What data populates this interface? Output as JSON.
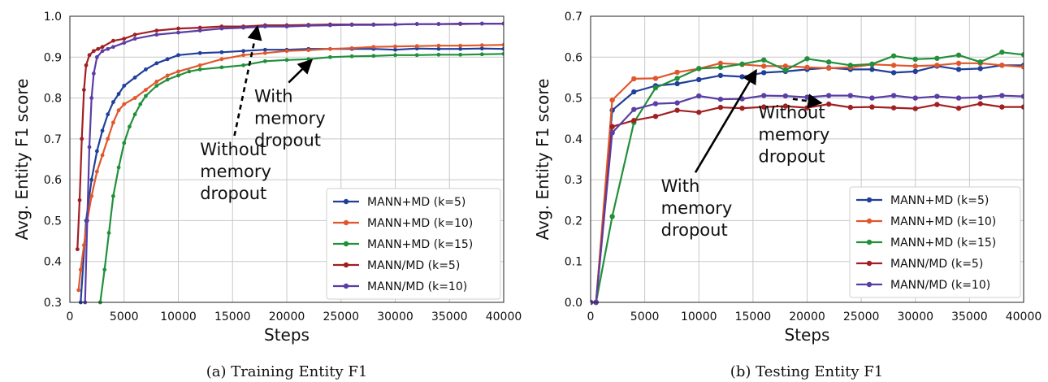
{
  "colors": {
    "MANN+MD (k=5)": "#1f3f9a",
    "MANN+MD (k=10)": "#e0572b",
    "MANN+MD (k=15)": "#21903a",
    "MANN/MD (k=5)": "#a11f22",
    "MANN/MD (k=10)": "#5b3ea5"
  },
  "chart_data": [
    {
      "type": "line",
      "caption": "(a) Training Entity F1",
      "xlabel": "Steps",
      "ylabel": "Avg. Entity F1 score",
      "xlim": [
        0,
        40000
      ],
      "ylim": [
        0.3,
        1.0
      ],
      "xticks": [
        0,
        5000,
        10000,
        15000,
        20000,
        25000,
        30000,
        35000,
        40000
      ],
      "yticks": [
        0.3,
        0.4,
        0.5,
        0.6,
        0.7,
        0.8,
        0.9,
        1.0
      ],
      "grid": true,
      "legend_position": "lower-right",
      "annotations": [
        {
          "text": "Without\nmemory\ndropout",
          "style": "dashed-arrow",
          "x": 12000,
          "y": 0.66,
          "arrow_to": [
            17300,
            0.975
          ]
        },
        {
          "text": "With\nmemory\ndropout",
          "style": "solid-arrow",
          "x": 17000,
          "y": 0.79,
          "arrow_to": [
            22300,
            0.893
          ]
        }
      ],
      "series": [
        {
          "name": "MANN+MD (k=5)",
          "x": [
            1000,
            1500,
            2000,
            2500,
            3000,
            3500,
            4000,
            4500,
            5000,
            6000,
            7000,
            8000,
            9000,
            10000,
            12000,
            14000,
            16000,
            18000,
            20000,
            22000,
            24000,
            26000,
            28000,
            30000,
            32000,
            34000,
            36000,
            38000,
            40000
          ],
          "values": [
            0.3,
            0.5,
            0.6,
            0.67,
            0.72,
            0.76,
            0.79,
            0.81,
            0.83,
            0.85,
            0.87,
            0.885,
            0.895,
            0.905,
            0.91,
            0.912,
            0.915,
            0.918,
            0.918,
            0.92,
            0.92,
            0.92,
            0.92,
            0.918,
            0.921,
            0.92,
            0.92,
            0.921,
            0.92
          ]
        },
        {
          "name": "MANN+MD (k=10)",
          "x": [
            800,
            1000,
            1300,
            1600,
            2000,
            2500,
            3000,
            3500,
            4000,
            4500,
            5000,
            6000,
            7000,
            8000,
            9000,
            10000,
            12000,
            14000,
            16000,
            18000,
            20000,
            22000,
            24000,
            26000,
            28000,
            30000,
            32000,
            34000,
            36000,
            38000,
            40000
          ],
          "values": [
            0.33,
            0.38,
            0.44,
            0.5,
            0.56,
            0.62,
            0.66,
            0.7,
            0.74,
            0.77,
            0.785,
            0.8,
            0.82,
            0.84,
            0.855,
            0.865,
            0.88,
            0.895,
            0.905,
            0.91,
            0.915,
            0.917,
            0.92,
            0.922,
            0.925,
            0.926,
            0.927,
            0.928,
            0.928,
            0.929,
            0.93
          ]
        },
        {
          "name": "MANN+MD (k=15)",
          "x": [
            2800,
            3200,
            3600,
            4000,
            4500,
            5000,
            5500,
            6000,
            6500,
            7000,
            8000,
            9000,
            10000,
            11000,
            12000,
            14000,
            16000,
            18000,
            20000,
            22000,
            24000,
            26000,
            28000,
            30000,
            32000,
            34000,
            36000,
            38000,
            40000
          ],
          "values": [
            0.3,
            0.38,
            0.47,
            0.56,
            0.63,
            0.69,
            0.73,
            0.76,
            0.785,
            0.805,
            0.83,
            0.845,
            0.855,
            0.865,
            0.87,
            0.875,
            0.88,
            0.89,
            0.893,
            0.895,
            0.9,
            0.902,
            0.903,
            0.905,
            0.905,
            0.906,
            0.906,
            0.907,
            0.908
          ]
        },
        {
          "name": "MANN/MD (k=5)",
          "x": [
            700,
            900,
            1100,
            1300,
            1500,
            1800,
            2200,
            2600,
            3000,
            4000,
            5000,
            6000,
            8000,
            10000,
            12000,
            14000,
            16000,
            18000,
            20000,
            22000,
            24000,
            26000,
            28000,
            30000,
            32000,
            34000,
            36000,
            38000,
            40000
          ],
          "values": [
            0.43,
            0.55,
            0.7,
            0.82,
            0.88,
            0.905,
            0.915,
            0.92,
            0.925,
            0.94,
            0.945,
            0.955,
            0.965,
            0.97,
            0.972,
            0.975,
            0.975,
            0.978,
            0.978,
            0.979,
            0.98,
            0.98,
            0.98,
            0.98,
            0.981,
            0.981,
            0.981,
            0.982,
            0.982
          ]
        },
        {
          "name": "MANN/MD (k=10)",
          "x": [
            1400,
            1600,
            1800,
            2000,
            2200,
            2500,
            3000,
            3500,
            4000,
            5000,
            6000,
            8000,
            10000,
            12000,
            14000,
            16000,
            18000,
            20000,
            22000,
            24000,
            26000,
            28000,
            30000,
            32000,
            34000,
            36000,
            38000,
            40000
          ],
          "values": [
            0.3,
            0.5,
            0.68,
            0.8,
            0.86,
            0.9,
            0.915,
            0.92,
            0.925,
            0.935,
            0.945,
            0.955,
            0.96,
            0.965,
            0.97,
            0.972,
            0.975,
            0.975,
            0.977,
            0.978,
            0.979,
            0.979,
            0.98,
            0.981,
            0.981,
            0.982,
            0.982,
            0.982
          ]
        }
      ]
    },
    {
      "type": "line",
      "caption": "(b) Testing Entity F1",
      "xlabel": "Steps",
      "ylabel": "Avg. Entity F1 score",
      "xlim": [
        0,
        40000
      ],
      "ylim": [
        0.0,
        0.7
      ],
      "xticks": [
        0,
        5000,
        10000,
        15000,
        20000,
        25000,
        30000,
        35000,
        40000
      ],
      "yticks": [
        0.0,
        0.1,
        0.2,
        0.3,
        0.4,
        0.5,
        0.6,
        0.7
      ],
      "grid": true,
      "legend_position": "lower-right",
      "annotations": [
        {
          "text": "With\nmemory\ndropout",
          "style": "solid-arrow",
          "x": 6500,
          "y": 0.27,
          "arrow_to": [
            15300,
            0.568
          ]
        },
        {
          "text": "Without\nmemory\ndropout",
          "style": "dashed-arrow",
          "x": 15500,
          "y": 0.45,
          "arrow_to": [
            21300,
            0.488
          ]
        }
      ],
      "series": [
        {
          "name": "MANN+MD (k=5)",
          "x": [
            0,
            500,
            2000,
            4000,
            6000,
            8000,
            10000,
            12000,
            14000,
            16000,
            18000,
            20000,
            22000,
            24000,
            26000,
            28000,
            30000,
            32000,
            34000,
            36000,
            38000,
            40000
          ],
          "values": [
            0.0,
            0.0,
            0.47,
            0.515,
            0.53,
            0.535,
            0.545,
            0.555,
            0.552,
            0.562,
            0.565,
            0.57,
            0.574,
            0.57,
            0.57,
            0.562,
            0.565,
            0.578,
            0.57,
            0.572,
            0.58,
            0.58
          ]
        },
        {
          "name": "MANN+MD (k=10)",
          "x": [
            0,
            500,
            2000,
            4000,
            6000,
            8000,
            10000,
            12000,
            14000,
            16000,
            18000,
            20000,
            22000,
            24000,
            26000,
            28000,
            30000,
            32000,
            34000,
            36000,
            38000,
            40000
          ],
          "values": [
            0.0,
            0.0,
            0.495,
            0.547,
            0.548,
            0.563,
            0.572,
            0.585,
            0.582,
            0.578,
            0.578,
            0.575,
            0.573,
            0.575,
            0.582,
            0.58,
            0.578,
            0.58,
            0.585,
            0.585,
            0.58,
            0.576
          ]
        },
        {
          "name": "MANN+MD (k=15)",
          "x": [
            0,
            500,
            2000,
            4000,
            6000,
            8000,
            10000,
            12000,
            14000,
            16000,
            18000,
            20000,
            22000,
            24000,
            26000,
            28000,
            30000,
            32000,
            34000,
            36000,
            38000,
            40000
          ],
          "values": [
            0.0,
            0.0,
            0.21,
            0.44,
            0.525,
            0.548,
            0.572,
            0.575,
            0.583,
            0.593,
            0.568,
            0.596,
            0.588,
            0.58,
            0.583,
            0.603,
            0.595,
            0.597,
            0.605,
            0.588,
            0.612,
            0.606
          ]
        },
        {
          "name": "MANN/MD (k=5)",
          "x": [
            0,
            500,
            2000,
            4000,
            6000,
            8000,
            10000,
            12000,
            14000,
            16000,
            18000,
            20000,
            22000,
            24000,
            26000,
            28000,
            30000,
            32000,
            34000,
            36000,
            38000,
            40000
          ],
          "values": [
            0.0,
            0.0,
            0.43,
            0.445,
            0.455,
            0.47,
            0.465,
            0.477,
            0.475,
            0.478,
            0.48,
            0.476,
            0.485,
            0.477,
            0.478,
            0.476,
            0.474,
            0.484,
            0.475,
            0.486,
            0.478,
            0.478
          ]
        },
        {
          "name": "MANN/MD (k=10)",
          "x": [
            0,
            500,
            2000,
            4000,
            6000,
            8000,
            10000,
            12000,
            14000,
            16000,
            18000,
            20000,
            22000,
            24000,
            26000,
            28000,
            30000,
            32000,
            34000,
            36000,
            38000,
            40000
          ],
          "values": [
            0.0,
            0.0,
            0.415,
            0.472,
            0.486,
            0.488,
            0.505,
            0.497,
            0.498,
            0.506,
            0.505,
            0.502,
            0.506,
            0.506,
            0.5,
            0.506,
            0.5,
            0.504,
            0.5,
            0.502,
            0.506,
            0.504
          ]
        }
      ]
    }
  ]
}
